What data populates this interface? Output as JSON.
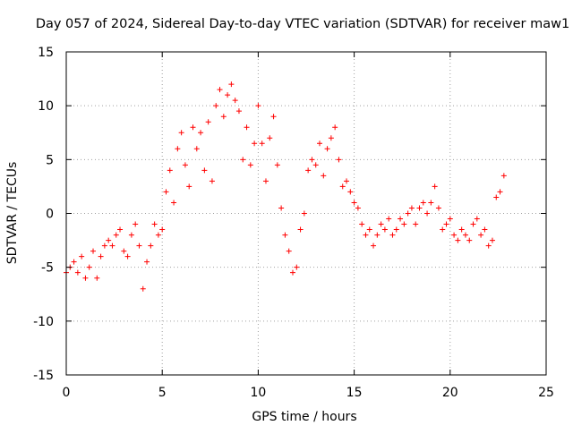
{
  "chart_data": {
    "type": "scatter",
    "title": "Day 057 of 2024, Sidereal Day-to-day VTEC variation (SDTVAR) for receiver maw1",
    "xlabel": "GPS time / hours",
    "ylabel": "SDTVAR / TECUs",
    "xlim": [
      0,
      25
    ],
    "ylim": [
      -15,
      15
    ],
    "xticks": [
      0,
      5,
      10,
      15,
      20,
      25
    ],
    "yticks": [
      -15,
      -10,
      -5,
      0,
      5,
      10,
      15
    ],
    "xtick_labels": [
      "0",
      "5",
      "10",
      "15",
      "20",
      "25"
    ],
    "ytick_labels": [
      "-15",
      "-10",
      "-5",
      "0",
      "5",
      "10",
      "15"
    ],
    "grid": true,
    "marker": "plus",
    "color": "#ff0000",
    "series": [
      {
        "name": "SDTVAR",
        "x": [
          0.0,
          0.2,
          0.4,
          0.6,
          0.8,
          1.0,
          1.2,
          1.4,
          1.6,
          1.8,
          2.0,
          2.2,
          2.4,
          2.6,
          2.8,
          3.0,
          3.2,
          3.4,
          3.6,
          3.8,
          4.0,
          4.2,
          4.4,
          4.6,
          4.8,
          5.0,
          5.2,
          5.4,
          5.6,
          5.8,
          6.0,
          6.2,
          6.4,
          6.6,
          6.8,
          7.0,
          7.2,
          7.4,
          7.6,
          7.8,
          8.0,
          8.2,
          8.4,
          8.6,
          8.8,
          9.0,
          9.2,
          9.4,
          9.6,
          9.8,
          10.0,
          10.2,
          10.4,
          10.6,
          10.8,
          11.0,
          11.2,
          11.4,
          11.6,
          11.8,
          12.0,
          12.2,
          12.4,
          12.6,
          12.8,
          13.0,
          13.2,
          13.4,
          13.6,
          13.8,
          14.0,
          14.2,
          14.4,
          14.6,
          14.8,
          15.0,
          15.2,
          15.4,
          15.6,
          15.8,
          16.0,
          16.2,
          16.4,
          16.6,
          16.8,
          17.0,
          17.2,
          17.4,
          17.6,
          17.8,
          18.0,
          18.2,
          18.4,
          18.6,
          18.8,
          19.0,
          19.2,
          19.4,
          19.6,
          19.8,
          20.0,
          20.2,
          20.4,
          20.6,
          20.8,
          21.0,
          21.2,
          21.4,
          21.6,
          21.8,
          22.0,
          22.2,
          22.4,
          22.6,
          22.8
        ],
        "y": [
          -5.5,
          -5.0,
          -4.5,
          -5.5,
          -4.0,
          -6.0,
          -5.0,
          -3.5,
          -6.0,
          -4.0,
          -3.0,
          -2.5,
          -3.0,
          -2.0,
          -1.5,
          -3.5,
          -4.0,
          -2.0,
          -1.0,
          -3.0,
          -7.0,
          -4.5,
          -3.0,
          -1.0,
          -2.0,
          -1.5,
          2.0,
          4.0,
          1.0,
          6.0,
          7.5,
          4.5,
          2.5,
          8.0,
          6.0,
          7.5,
          4.0,
          8.5,
          3.0,
          10.0,
          11.5,
          9.0,
          11.0,
          12.0,
          10.5,
          9.5,
          5.0,
          8.0,
          4.5,
          6.5,
          10.0,
          6.5,
          3.0,
          7.0,
          9.0,
          4.5,
          0.5,
          -2.0,
          -3.5,
          -5.5,
          -5.0,
          -1.5,
          0.0,
          4.0,
          5.0,
          4.5,
          6.5,
          3.5,
          6.0,
          7.0,
          8.0,
          5.0,
          2.5,
          3.0,
          2.0,
          1.0,
          0.5,
          -1.0,
          -2.0,
          -1.5,
          -3.0,
          -2.0,
          -1.0,
          -1.5,
          -0.5,
          -2.0,
          -1.5,
          -0.5,
          -1.0,
          0.0,
          0.5,
          -1.0,
          0.5,
          1.0,
          0.0,
          1.0,
          2.5,
          0.5,
          -1.5,
          -1.0,
          -0.5,
          -2.0,
          -2.5,
          -1.5,
          -2.0,
          -2.5,
          -1.0,
          -0.5,
          -2.0,
          -1.5,
          -3.0,
          -2.5,
          1.5,
          2.0,
          3.5
        ]
      }
    ]
  }
}
